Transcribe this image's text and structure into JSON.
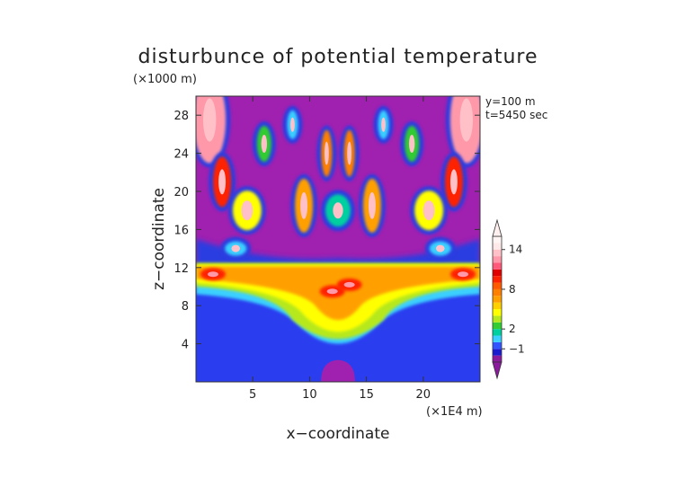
{
  "chart_data": {
    "type": "heatmap",
    "title": "disturbunce of potential temperature",
    "xlabel": "x−coordinate",
    "ylabel": "z−coordinate",
    "x_unit": "(×1E4 m)",
    "y_unit": "(×1000 m)",
    "annotations": [
      "y=100 m",
      "t=5450 sec"
    ],
    "xlim": [
      0,
      25
    ],
    "ylim": [
      0,
      30
    ],
    "x_ticks": [
      5,
      10,
      15,
      20
    ],
    "y_ticks": [
      4,
      8,
      12,
      16,
      20,
      24,
      28
    ],
    "x_tick_labels": [
      "5",
      "10",
      "15",
      "20"
    ],
    "y_tick_labels": [
      "4",
      "8",
      "12",
      "16",
      "20",
      "24",
      "28"
    ],
    "colorbar": {
      "levels": [
        -3,
        -2,
        -1,
        0,
        1,
        2,
        3,
        4,
        5,
        6,
        7,
        8,
        9,
        10,
        11,
        12,
        13,
        14,
        15,
        16
      ],
      "colors": [
        "#8b1a9e",
        "#1a1ad0",
        "#3355ff",
        "#3bd0ff",
        "#00d0a0",
        "#33cc33",
        "#b6e81e",
        "#ffff00",
        "#ffd000",
        "#ffa000",
        "#ff8000",
        "#ff5a00",
        "#ff2200",
        "#e00000",
        "#ff5a7a",
        "#ff99aa",
        "#ffc0c8",
        "#ffe8e8",
        "#fff5f5"
      ],
      "labels": [
        "−1",
        "2",
        "8",
        "14"
      ],
      "label_levels": [
        -1,
        2,
        8,
        14
      ],
      "extend": "both"
    },
    "regions_description": {
      "lower_layer_value": -1.5,
      "band_z_range": [
        9.5,
        12.5
      ],
      "band_peak": 14,
      "upper_background": -2.5,
      "bottom_bump_value": -3
    }
  }
}
